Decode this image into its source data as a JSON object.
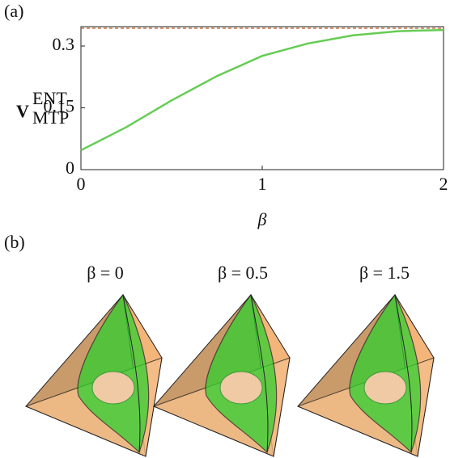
{
  "panel_a_label": "(a)",
  "panel_b_label": "(b)",
  "chart_data": {
    "type": "line",
    "y_label": {
      "main": "V",
      "sup": "ENT",
      "sub": "MTP"
    },
    "x_label": "β",
    "x": [
      0,
      0.25,
      0.5,
      0.75,
      1,
      1.25,
      1.5,
      1.75,
      2
    ],
    "series": [
      {
        "color": "#66cc55",
        "dashed": false,
        "values": [
          0.047,
          0.103,
          0.168,
          0.227,
          0.276,
          0.306,
          0.326,
          0.336,
          0.339
        ]
      },
      {
        "color": "#cc7744",
        "dashed": true,
        "values": [
          0.343,
          0.343,
          0.343,
          0.343,
          0.343,
          0.343,
          0.343,
          0.343,
          0.343
        ]
      }
    ],
    "xlim": [
      0,
      2
    ],
    "xticks": [
      0,
      1,
      2
    ],
    "ylim": [
      0,
      0.347
    ],
    "yticks": [
      0,
      0.15,
      0.3
    ]
  },
  "renders": [
    {
      "title": "β = 0"
    },
    {
      "title": "β = 0.5"
    },
    {
      "title": "β = 1.5"
    }
  ]
}
